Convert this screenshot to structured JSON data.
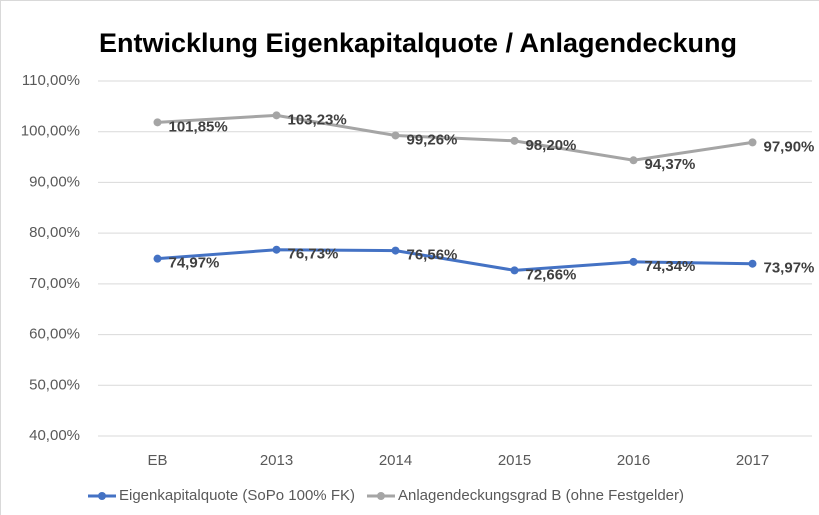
{
  "chart_data": {
    "type": "line",
    "title": "Entwicklung Eigenkapitalquote / Anlagendeckung",
    "categories": [
      "EB",
      "2013",
      "2014",
      "2015",
      "2016",
      "2017"
    ],
    "series": [
      {
        "name": "Eigenkapitalquote (SoPo 100% FK)",
        "color": "#4472c4",
        "values": [
          74.97,
          76.73,
          76.56,
          72.66,
          74.34,
          73.97
        ],
        "value_labels": [
          "74,97%",
          "76,73%",
          "76,56%",
          "72,66%",
          "74,34%",
          "73,97%"
        ]
      },
      {
        "name": "Anlagendeckungsgrad B (ohne Festgelder)",
        "color": "#a5a5a5",
        "values": [
          101.85,
          103.23,
          99.26,
          98.2,
          94.37,
          97.9
        ],
        "value_labels": [
          "101,85%",
          "103,23%",
          "99,26%",
          "98,20%",
          "94,37%",
          "97,90%"
        ]
      }
    ],
    "ylim": [
      40,
      110
    ],
    "yticks": [
      {
        "value": 40,
        "label": "40,00%"
      },
      {
        "value": 50,
        "label": "50,00%"
      },
      {
        "value": 60,
        "label": "60,00%"
      },
      {
        "value": 70,
        "label": "70,00%"
      },
      {
        "value": 80,
        "label": "80,00%"
      },
      {
        "value": 90,
        "label": "90,00%"
      },
      {
        "value": 100,
        "label": "100,00%"
      },
      {
        "value": 110,
        "label": "110,00%"
      }
    ],
    "grid": true,
    "legend": "bottom"
  }
}
